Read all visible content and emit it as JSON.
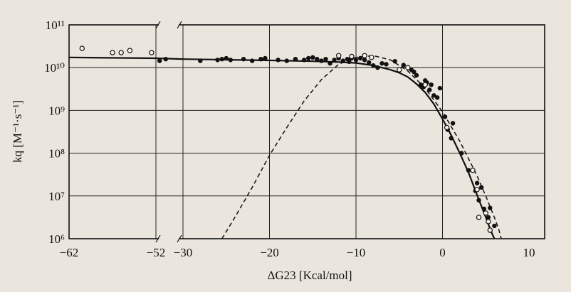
{
  "chart_data": {
    "type": "scatter",
    "title": "",
    "xlabel": "ΔG23 [Kcal/mol]",
    "ylabel": "kq [M⁻¹·s⁻¹]",
    "xlim": [
      -62,
      10
    ],
    "x_axis_break": {
      "from": -52,
      "to": -30
    },
    "ylim_log10": [
      6,
      11
    ],
    "log_scale_y": true,
    "grid": true,
    "x_ticks": [
      {
        "value": -62,
        "label": "−62"
      },
      {
        "value": -52,
        "label": "−52"
      },
      {
        "value": -30,
        "label": "−30"
      },
      {
        "value": -20,
        "label": "−20"
      },
      {
        "value": -10,
        "label": "−10"
      },
      {
        "value": 0,
        "label": "0"
      },
      {
        "value": 10,
        "label": "10"
      }
    ],
    "y_ticks": [
      {
        "exp": 6,
        "label": "10⁶"
      },
      {
        "exp": 7,
        "label": "10⁷"
      },
      {
        "exp": 8,
        "label": "10⁸"
      },
      {
        "exp": 9,
        "label": "10⁹"
      },
      {
        "exp": 10,
        "label": "10¹⁰"
      },
      {
        "exp": 11,
        "label": "10¹¹"
      }
    ],
    "series": [
      {
        "marker": "filled-circle",
        "points": [
          [
            -49,
            10.16
          ],
          [
            -44,
            10.2
          ],
          [
            -28,
            10.16
          ],
          [
            -26,
            10.18
          ],
          [
            -25.5,
            10.2
          ],
          [
            -25,
            10.22
          ],
          [
            -24.5,
            10.18
          ],
          [
            -23,
            10.2
          ],
          [
            -22,
            10.16
          ],
          [
            -21,
            10.2
          ],
          [
            -20.5,
            10.22
          ],
          [
            -19,
            10.18
          ],
          [
            -18,
            10.16
          ],
          [
            -17,
            10.2
          ],
          [
            -16,
            10.18
          ],
          [
            -15.5,
            10.22
          ],
          [
            -15,
            10.24
          ],
          [
            -14.5,
            10.2
          ],
          [
            -14,
            10.16
          ],
          [
            -13.5,
            10.2
          ],
          [
            -13,
            10.1
          ],
          [
            -12.5,
            10.18
          ],
          [
            -12,
            10.22
          ],
          [
            -11.5,
            10.16
          ],
          [
            -11,
            10.2
          ],
          [
            -10.8,
            10.14
          ],
          [
            -10.5,
            10.22
          ],
          [
            -10,
            10.18
          ],
          [
            -9.5,
            10.22
          ],
          [
            -9,
            10.18
          ],
          [
            -8.5,
            10.12
          ],
          [
            -8,
            10.05
          ],
          [
            -7.5,
            10.0
          ],
          [
            -7,
            10.1
          ],
          [
            -6.5,
            10.08
          ],
          [
            -5.5,
            10.15
          ],
          [
            -4.5,
            10.06
          ],
          [
            -4,
            10.0
          ],
          [
            -3.6,
            9.95
          ],
          [
            -3.3,
            9.9
          ],
          [
            -3,
            9.82
          ],
          [
            -2.5,
            9.6
          ],
          [
            -2.2,
            9.55
          ],
          [
            -2,
            9.7
          ],
          [
            -1.8,
            9.65
          ],
          [
            -1.5,
            9.48
          ],
          [
            -1.3,
            9.6
          ],
          [
            -1,
            9.35
          ],
          [
            -0.6,
            9.3
          ],
          [
            -0.3,
            9.52
          ],
          [
            0.3,
            8.85
          ],
          [
            0.6,
            8.55
          ],
          [
            1,
            8.35
          ],
          [
            1.2,
            8.7
          ],
          [
            2.2,
            8.0
          ],
          [
            3,
            7.6
          ],
          [
            3.8,
            7.12
          ],
          [
            4,
            7.3
          ],
          [
            4.2,
            6.9
          ],
          [
            4.5,
            7.2
          ],
          [
            4.8,
            6.7
          ],
          [
            5.3,
            6.5
          ],
          [
            5.5,
            6.72
          ],
          [
            6,
            6.3
          ]
        ]
      },
      {
        "marker": "open-circle",
        "points": [
          [
            -60.5,
            10.45
          ],
          [
            -57,
            10.35
          ],
          [
            -56,
            10.35
          ],
          [
            -55,
            10.4
          ],
          [
            -52.5,
            10.35
          ],
          [
            -12,
            10.28
          ],
          [
            -10.5,
            10.26
          ],
          [
            -9,
            10.28
          ],
          [
            -8.2,
            10.24
          ],
          [
            -5,
            9.95
          ],
          [
            -4,
            10.0
          ],
          [
            -2,
            9.6
          ],
          [
            0.5,
            8.6
          ],
          [
            3.5,
            7.6
          ],
          [
            4,
            7.15
          ],
          [
            5,
            6.6
          ],
          [
            4.2,
            6.5
          ],
          [
            5.3,
            6.4
          ],
          [
            5.5,
            6.2
          ]
        ]
      }
    ],
    "curves": [
      {
        "style": "solid",
        "points": [
          [
            -62,
            10.24
          ],
          [
            -52,
            10.22
          ],
          [
            -30,
            10.2
          ],
          [
            -20,
            10.17
          ],
          [
            -15,
            10.15
          ],
          [
            -12,
            10.13
          ],
          [
            -10,
            10.11
          ],
          [
            -8,
            10.05
          ],
          [
            -6,
            9.95
          ],
          [
            -5,
            9.88
          ],
          [
            -4,
            9.78
          ],
          [
            -3,
            9.62
          ],
          [
            -2,
            9.42
          ],
          [
            -1,
            9.15
          ],
          [
            0,
            8.8
          ],
          [
            1,
            8.42
          ],
          [
            2,
            8.0
          ],
          [
            3,
            7.55
          ],
          [
            4,
            7.02
          ],
          [
            5,
            6.5
          ],
          [
            5.6,
            6.18
          ],
          [
            6,
            6.0
          ]
        ]
      },
      {
        "style": "dashed",
        "points": [
          [
            -25.5,
            6.0
          ],
          [
            -24,
            6.5
          ],
          [
            -22,
            7.2
          ],
          [
            -20,
            7.95
          ],
          [
            -18,
            8.6
          ],
          [
            -16,
            9.22
          ],
          [
            -14,
            9.72
          ],
          [
            -12,
            10.08
          ],
          [
            -10,
            10.24
          ],
          [
            -8,
            10.28
          ],
          [
            -6,
            10.18
          ],
          [
            -4,
            9.92
          ],
          [
            -2,
            9.52
          ],
          [
            0,
            8.97
          ],
          [
            2,
            8.28
          ],
          [
            4,
            7.47
          ],
          [
            5,
            7.0
          ],
          [
            5.5,
            6.75
          ],
          [
            6,
            6.5
          ],
          [
            6.5,
            6.22
          ],
          [
            6.8,
            6.0
          ]
        ]
      }
    ]
  }
}
